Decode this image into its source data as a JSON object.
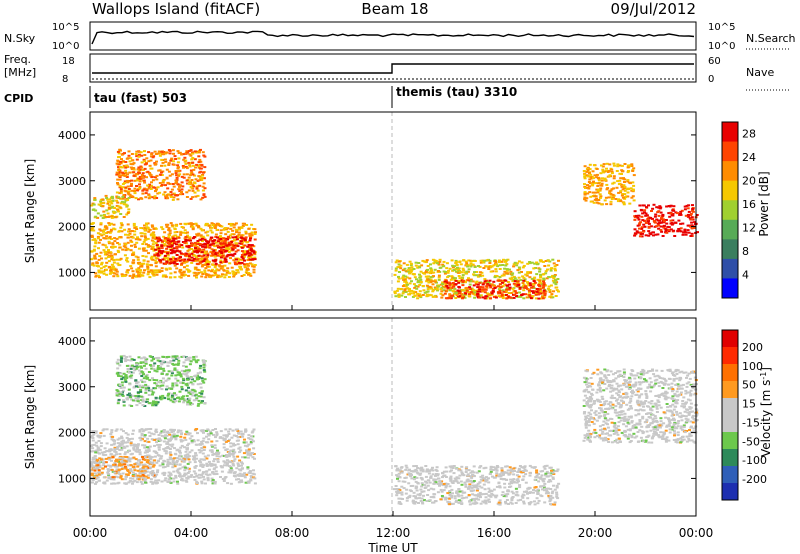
{
  "header": {
    "site": "Wallops Island (fitACF)",
    "beam": "Beam 18",
    "date": "09/Jul/2012"
  },
  "noise_panel": {
    "left_label": "N.Sky",
    "right_label": "N.Search",
    "left_ticks": [
      "10^5",
      "10^0"
    ],
    "right_ticks": [
      "10^5",
      "10^0"
    ]
  },
  "freq_panel": {
    "left_label_1": "Freq.",
    "left_label_2": "[MHz]",
    "right_label": "Nave",
    "left_ticks": [
      "18",
      "8"
    ],
    "right_ticks": [
      "60",
      "0"
    ]
  },
  "cpid": {
    "label": "CPID",
    "modes": [
      {
        "name": "tau (fast) 503",
        "start_hour": 0
      },
      {
        "name": "themis (tau) 3310",
        "start_hour": 12
      }
    ]
  },
  "colors": {
    "power_scale": [
      "#0000ff",
      "#2f4fa8",
      "#3a7e5f",
      "#57ab57",
      "#a0d030",
      "#f5c800",
      "#ff8c00",
      "#ff4400",
      "#e80000"
    ],
    "velocity_scale": [
      "#1d2fb0",
      "#2f5fb8",
      "#2d8a5a",
      "#6cc84c",
      "#c8c8c8",
      "#c8c8c8",
      "#ff9a20",
      "#ff7000",
      "#ff2a00",
      "#e00000"
    ]
  },
  "chart_data": [
    {
      "type": "heatmap",
      "title": "Power",
      "xlabel": "Time UT",
      "ylabel": "Slant Range [km]",
      "xlim": [
        0,
        24
      ],
      "ylim": [
        180,
        4500
      ],
      "x_ticks": [
        "00:00",
        "04:00",
        "08:00",
        "12:00",
        "16:00",
        "20:00",
        "00:00"
      ],
      "y_ticks": [
        1000,
        2000,
        3000,
        4000
      ],
      "colorbar": {
        "label": "Power [dB]",
        "ticks": [
          4,
          8,
          12,
          16,
          20,
          24,
          28
        ],
        "range": [
          0,
          30
        ]
      },
      "features": [
        {
          "t0": 0.0,
          "t1": 6.5,
          "r0": 900,
          "r1": 2100,
          "value": 20
        },
        {
          "t0": 2.5,
          "t1": 6.5,
          "r0": 1200,
          "r1": 1800,
          "value": 28
        },
        {
          "t0": 1.0,
          "t1": 4.5,
          "r0": 2600,
          "r1": 3700,
          "value": 22
        },
        {
          "t0": 0.0,
          "t1": 1.5,
          "r0": 2200,
          "r1": 2700,
          "value": 18
        },
        {
          "t0": 12.0,
          "t1": 18.5,
          "r0": 450,
          "r1": 1300,
          "value": 18
        },
        {
          "t0": 14.0,
          "t1": 18.0,
          "r0": 450,
          "r1": 850,
          "value": 26
        },
        {
          "t0": 19.5,
          "t1": 21.5,
          "r0": 2500,
          "r1": 3400,
          "value": 20
        },
        {
          "t0": 21.5,
          "t1": 24.0,
          "r0": 1800,
          "r1": 2500,
          "value": 28
        }
      ]
    },
    {
      "type": "heatmap",
      "title": "Velocity",
      "xlabel": "Time UT",
      "ylabel": "Slant Range [km]",
      "xlim": [
        0,
        24
      ],
      "ylim": [
        180,
        4500
      ],
      "x_ticks": [
        "00:00",
        "04:00",
        "08:00",
        "12:00",
        "16:00",
        "20:00",
        "00:00"
      ],
      "y_ticks": [
        1000,
        2000,
        3000,
        4000
      ],
      "colorbar": {
        "label": "Velocity [m s^-1]",
        "ticks": [
          200,
          100,
          50,
          15,
          -15,
          -50,
          -100,
          -200
        ],
        "range": [
          -250,
          250
        ]
      },
      "features": [
        {
          "t0": 0.0,
          "t1": 6.5,
          "r0": 900,
          "r1": 2100,
          "value": 0
        },
        {
          "t0": 0.0,
          "t1": 2.5,
          "r0": 1000,
          "r1": 1500,
          "value": 60
        },
        {
          "t0": 1.0,
          "t1": 4.5,
          "r0": 2600,
          "r1": 3700,
          "value": -60
        },
        {
          "t0": 12.0,
          "t1": 18.5,
          "r0": 450,
          "r1": 1300,
          "value": 0
        },
        {
          "t0": 19.5,
          "t1": 24.0,
          "r0": 1800,
          "r1": 3400,
          "value": 0
        }
      ]
    }
  ]
}
